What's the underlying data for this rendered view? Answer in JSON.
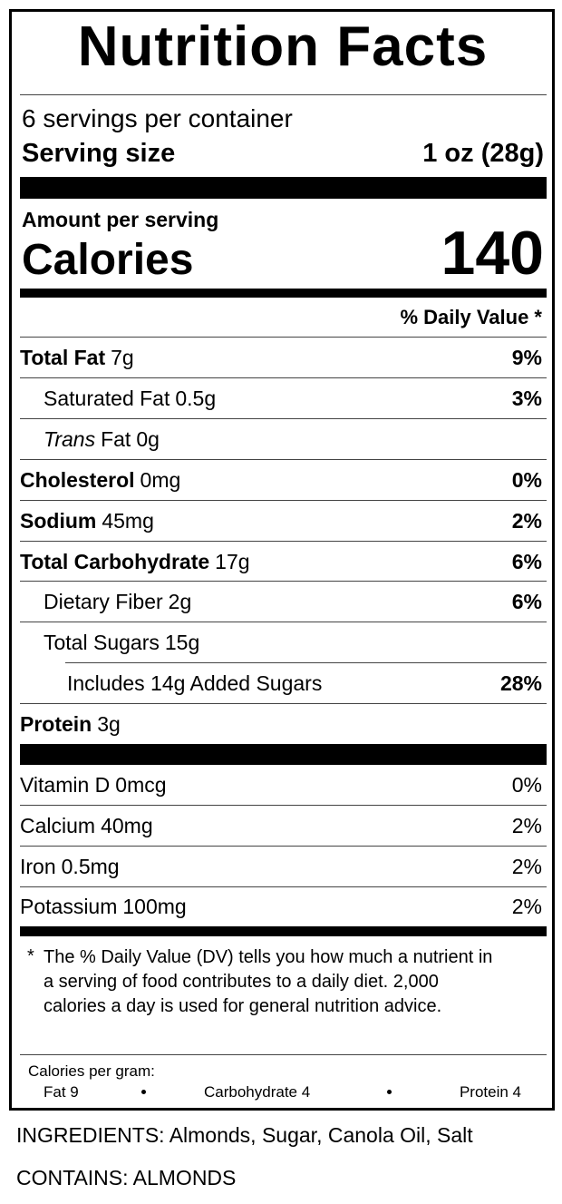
{
  "title": "Nutrition Facts",
  "servings": "6 servings per container",
  "serving_size": {
    "label": "Serving size",
    "value": "1 oz (28g)"
  },
  "amount_per_serving": "Amount per serving",
  "calories": {
    "label": "Calories",
    "value": 140
  },
  "daily_value_header": "% Daily Value *",
  "nutrients": [
    {
      "name": "Total Fat",
      "amount": "7g",
      "dv": "9%"
    },
    {
      "name": "Saturated Fat",
      "amount": "0.5g",
      "dv": "3%"
    },
    {
      "name_italic": "Trans",
      "name": "Fat",
      "amount": "0g"
    },
    {
      "name": "Cholesterol",
      "amount": "0mg",
      "dv": "0%"
    },
    {
      "name": "Sodium",
      "amount": "45mg",
      "dv": "2%"
    },
    {
      "name": "Total Carbohydrate",
      "amount": "17g",
      "dv": "6%"
    },
    {
      "name": "Dietary Fiber",
      "amount": "2g",
      "dv": "6%"
    },
    {
      "name": "Total Sugars",
      "amount": "15g"
    },
    {
      "name": "Includes 14g Added Sugars",
      "dv": "28%"
    },
    {
      "name": "Protein",
      "amount": "3g"
    }
  ],
  "vitamins": [
    {
      "name": "Vitamin D",
      "amount": "0mcg",
      "dv": "0%"
    },
    {
      "name": "Calcium",
      "amount": "40mg",
      "dv": "2%"
    },
    {
      "name": "Iron",
      "amount": "0.5mg",
      "dv": "2%"
    },
    {
      "name": "Potassium",
      "amount": "100mg",
      "dv": "2%"
    }
  ],
  "footnote": {
    "marker": "*",
    "text": "The % Daily Value (DV) tells you how much a nutrient in a serving of food contributes to a daily diet. 2,000 calories a day is used for general nutrition advice."
  },
  "calories_per_gram": {
    "label": "Calories per gram:",
    "items": [
      "Fat 9",
      "Carbohydrate 4",
      "Protein 4"
    ]
  },
  "ingredients": "INGREDIENTS: Almonds, Sugar, Canola Oil, Salt",
  "contains": "CONTAINS: ALMONDS"
}
